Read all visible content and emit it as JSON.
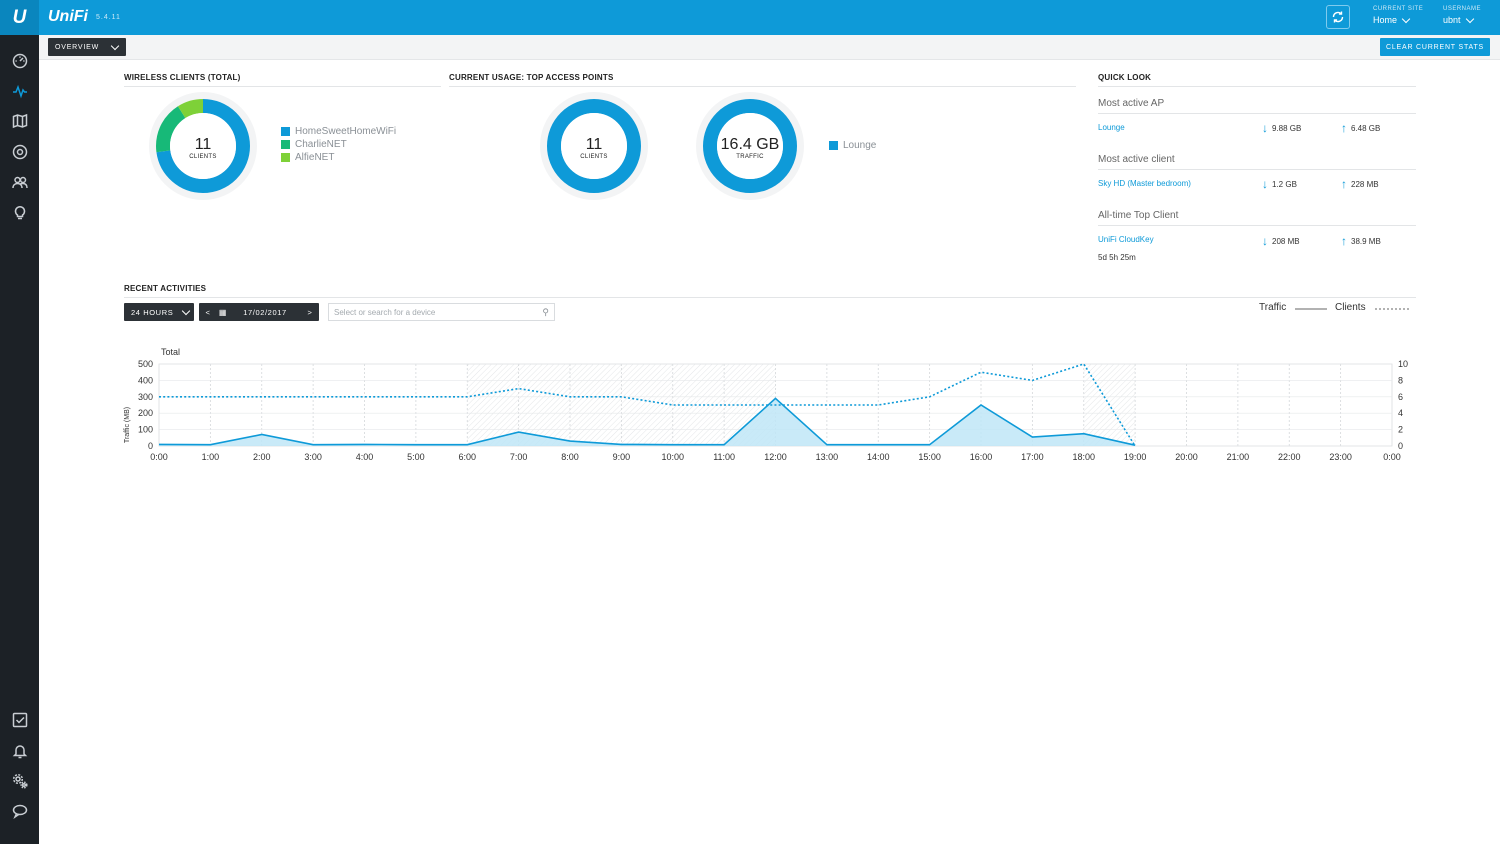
{
  "header": {
    "logo_glyph": "U",
    "brand": "UniFi",
    "version": "5.4.11",
    "current_site_label": "CURRENT SITE",
    "current_site_value": "Home",
    "username_label": "USERNAME",
    "username_value": "ubnt"
  },
  "sidebar": {
    "items": [
      {
        "icon": "dashboard-icon",
        "active": false
      },
      {
        "icon": "statistics-icon",
        "active": true
      },
      {
        "icon": "map-icon",
        "active": false
      },
      {
        "icon": "devices-icon",
        "active": false
      },
      {
        "icon": "clients-icon",
        "active": false
      },
      {
        "icon": "insights-icon",
        "active": false
      }
    ],
    "bottom_items": [
      {
        "icon": "events-icon"
      },
      {
        "icon": "alerts-icon"
      },
      {
        "icon": "settings-icon"
      },
      {
        "icon": "chat-icon"
      }
    ]
  },
  "toolbar": {
    "overview_label": "OVERVIEW",
    "clear_label": "CLEAR CURRENT STATS"
  },
  "wireless_clients": {
    "title": "WIRELESS CLIENTS (TOTAL)",
    "count": "11",
    "count_label": "CLIENTS",
    "segments": [
      {
        "name": "HomeSweetHomeWiFi",
        "value": 8,
        "color": "#0e9ad8"
      },
      {
        "name": "CharlieNET",
        "value": 2,
        "color": "#17b978"
      },
      {
        "name": "AlfieNET",
        "value": 1,
        "color": "#7ed138"
      }
    ]
  },
  "current_usage": {
    "title": "CURRENT USAGE: TOP ACCESS POINTS",
    "clients_count": "11",
    "clients_label": "CLIENTS",
    "traffic_value": "16.4 GB",
    "traffic_label": "TRAFFIC",
    "legend": [
      {
        "name": "Lounge",
        "color": "#0e9ad8"
      }
    ]
  },
  "quick_look": {
    "title": "QUICK LOOK",
    "most_active_ap": {
      "label": "Most active AP",
      "name": "Lounge",
      "down": "9.88 GB",
      "up": "6.48 GB"
    },
    "most_active_client": {
      "label": "Most active client",
      "name": "Sky HD (Master bedroom)",
      "down": "1.2 GB",
      "up": "228 MB"
    },
    "all_time_top_client": {
      "label": "All-time Top Client",
      "name": "UniFi CloudKey",
      "down": "208 MB",
      "up": "38.9 MB",
      "duration": "5d 5h 25m"
    }
  },
  "recent_activities": {
    "title": "RECENT ACTIVITIES",
    "range_label": "24 HOURS",
    "date_label": "17/02/2017",
    "prev_glyph": "<",
    "next_glyph": ">",
    "calendar_glyph": "▦",
    "search_placeholder": "Select or search for a device",
    "legend_traffic": "Traffic",
    "legend_clients": "Clients"
  },
  "chart_data": {
    "type": "line",
    "title": "Total",
    "ylabel": "Traffic (MB)",
    "x": [
      "0:00",
      "1:00",
      "2:00",
      "3:00",
      "4:00",
      "5:00",
      "6:00",
      "7:00",
      "8:00",
      "9:00",
      "10:00",
      "11:00",
      "12:00",
      "13:00",
      "14:00",
      "15:00",
      "16:00",
      "17:00",
      "18:00",
      "19:00",
      "20:00",
      "21:00",
      "22:00",
      "23:00",
      "0:00"
    ],
    "ylim": [
      0,
      500
    ],
    "y_ticks": [
      0,
      100,
      200,
      300,
      400,
      500
    ],
    "y2lim": [
      0,
      10
    ],
    "y2_ticks": [
      0,
      2,
      4,
      6,
      8,
      10
    ],
    "series": [
      {
        "name": "Traffic",
        "axis": "left",
        "style": "solid-area",
        "color": "#0e9ad8",
        "values": [
          10,
          8,
          70,
          8,
          10,
          8,
          8,
          85,
          30,
          10,
          8,
          8,
          290,
          8,
          8,
          8,
          250,
          55,
          75,
          5,
          null,
          null,
          null,
          null,
          null
        ]
      },
      {
        "name": "Clients",
        "axis": "right",
        "style": "dotted",
        "color": "#0e9ad8",
        "values": [
          6,
          6,
          6,
          6,
          6,
          6,
          6,
          7,
          6,
          6,
          5,
          5,
          5,
          5,
          5,
          6,
          9,
          8,
          10,
          0,
          null,
          null,
          null,
          null,
          null
        ]
      }
    ],
    "shaded_ranges": [
      [
        6,
        12
      ],
      [
        18,
        19
      ]
    ]
  }
}
